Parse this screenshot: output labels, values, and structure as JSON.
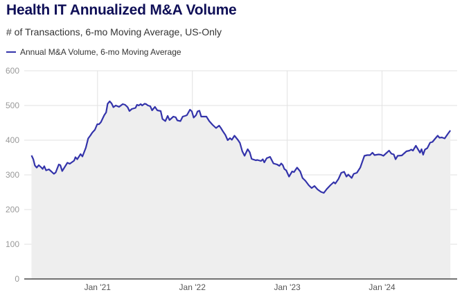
{
  "chart_data": {
    "type": "area",
    "title": "Health IT Annualized M&A Volume",
    "subtitle": "# of Transactions, 6-mo Moving Average, US-Only",
    "xlabel": "",
    "ylabel": "",
    "ylim": [
      0,
      600
    ],
    "xlim": [
      "2020-03-25",
      "2024-10-16"
    ],
    "yticks": [
      0,
      100,
      200,
      300,
      400,
      500,
      600
    ],
    "xticks": [
      {
        "date": "2021-01-01",
        "label": "Jan '21"
      },
      {
        "date": "2022-01-01",
        "label": "Jan '22"
      },
      {
        "date": "2023-01-01",
        "label": "Jan '23"
      },
      {
        "date": "2024-01-01",
        "label": "Jan '24"
      }
    ],
    "grid": true,
    "legend_position": "top-left",
    "colors": {
      "line": "#3333aa",
      "fill": "#eeeeee",
      "grid": "#e2e2e2",
      "title": "#0f0f57"
    },
    "series": [
      {
        "name": "Annual M&A Volume, 6-mo Moving Average",
        "x": [
          "2020-04-22",
          "2020-04-29",
          "2020-05-05",
          "2020-05-12",
          "2020-05-20",
          "2020-05-30",
          "2020-06-04",
          "2020-06-10",
          "2020-06-17",
          "2020-06-28",
          "2020-07-07",
          "2020-07-17",
          "2020-07-24",
          "2020-08-05",
          "2020-08-11",
          "2020-08-18",
          "2020-09-07",
          "2020-09-16",
          "2020-10-03",
          "2020-10-08",
          "2020-10-15",
          "2020-10-28",
          "2020-11-04",
          "2020-11-17",
          "2020-11-26",
          "2020-12-04",
          "2020-12-12",
          "2020-12-22",
          "2020-12-31",
          "2021-01-07",
          "2021-01-14",
          "2021-01-27",
          "2021-02-03",
          "2021-02-09",
          "2021-02-17",
          "2021-02-24",
          "2021-03-03",
          "2021-03-12",
          "2021-03-25",
          "2021-04-08",
          "2021-04-17",
          "2021-04-27",
          "2021-05-04",
          "2021-05-13",
          "2021-05-27",
          "2021-06-02",
          "2021-06-09",
          "2021-06-16",
          "2021-06-22",
          "2021-07-01",
          "2021-07-07",
          "2021-07-14",
          "2021-07-23",
          "2021-07-30",
          "2021-08-10",
          "2021-08-19",
          "2021-09-01",
          "2021-09-08",
          "2021-09-19",
          "2021-09-28",
          "2021-10-05",
          "2021-10-20",
          "2021-10-29",
          "2021-11-04",
          "2021-11-16",
          "2021-11-25",
          "2021-12-04",
          "2021-12-11",
          "2021-12-23",
          "2021-12-30",
          "2022-01-06",
          "2022-01-15",
          "2022-01-21",
          "2022-01-28",
          "2022-02-04",
          "2022-02-24",
          "2022-03-07",
          "2022-03-20",
          "2022-04-02",
          "2022-04-14",
          "2022-04-20",
          "2022-04-29",
          "2022-05-08",
          "2022-05-17",
          "2022-05-26",
          "2022-06-02",
          "2022-06-12",
          "2022-06-25",
          "2022-07-03",
          "2022-07-12",
          "2022-07-21",
          "2022-08-02",
          "2022-08-10",
          "2022-08-17",
          "2022-09-02",
          "2022-09-08",
          "2022-09-22",
          "2022-09-29",
          "2022-10-05",
          "2022-10-14",
          "2022-10-27",
          "2022-11-09",
          "2022-11-23",
          "2022-12-02",
          "2022-12-09",
          "2022-12-15",
          "2022-12-21",
          "2022-12-28",
          "2023-01-08",
          "2023-01-20",
          "2023-01-27",
          "2023-02-08",
          "2023-02-20",
          "2023-03-01",
          "2023-03-12",
          "2023-03-25",
          "2023-04-05",
          "2023-04-16",
          "2023-04-28",
          "2023-05-11",
          "2023-05-22",
          "2023-06-02",
          "2023-06-16",
          "2023-06-29",
          "2023-07-05",
          "2023-07-17",
          "2023-07-28",
          "2023-08-08",
          "2023-08-17",
          "2023-08-24",
          "2023-09-06",
          "2023-09-14",
          "2023-09-26",
          "2023-10-09",
          "2023-10-25",
          "2023-11-05",
          "2023-11-16",
          "2023-11-25",
          "2023-12-03",
          "2023-12-19",
          "2023-12-28",
          "2024-01-06",
          "2024-01-15",
          "2024-01-28",
          "2024-02-06",
          "2024-02-15",
          "2024-02-22",
          "2024-03-01",
          "2024-03-17",
          "2024-04-04",
          "2024-04-16",
          "2024-04-22",
          "2024-04-29",
          "2024-05-10",
          "2024-05-19",
          "2024-05-26",
          "2024-06-01",
          "2024-06-07",
          "2024-06-14",
          "2024-06-23",
          "2024-07-04",
          "2024-07-13",
          "2024-07-24",
          "2024-08-02",
          "2024-08-09",
          "2024-08-18",
          "2024-08-29",
          "2024-09-10",
          "2024-09-20"
        ],
        "values": [
          356,
          345,
          327,
          321,
          328,
          321,
          317,
          325,
          313,
          316,
          310,
          303,
          307,
          330,
          328,
          311,
          335,
          332,
          341,
          351,
          345,
          360,
          353,
          378,
          405,
          413,
          422,
          430,
          446,
          446,
          452,
          472,
          480,
          505,
          512,
          506,
          495,
          500,
          496,
          504,
          502,
          495,
          484,
          490,
          493,
          502,
          500,
          504,
          500,
          505,
          504,
          500,
          498,
          486,
          496,
          486,
          484,
          461,
          455,
          470,
          458,
          468,
          466,
          457,
          455,
          468,
          470,
          472,
          488,
          483,
          465,
          472,
          483,
          485,
          468,
          468,
          455,
          444,
          435,
          442,
          436,
          425,
          415,
          400,
          406,
          401,
          413,
          401,
          392,
          368,
          355,
          374,
          365,
          346,
          342,
          343,
          340,
          345,
          336,
          348,
          352,
          333,
          330,
          326,
          333,
          328,
          317,
          313,
          295,
          310,
          308,
          321,
          310,
          291,
          283,
          270,
          262,
          268,
          258,
          251,
          248,
          259,
          270,
          279,
          275,
          288,
          306,
          309,
          295,
          301,
          291,
          303,
          306,
          321,
          355,
          357,
          357,
          364,
          357,
          359,
          358,
          355,
          361,
          370,
          361,
          359,
          345,
          355,
          356,
          368,
          370,
          373,
          370,
          384,
          373,
          364,
          374,
          358,
          373,
          377,
          393,
          395,
          405,
          413,
          407,
          408,
          405,
          418,
          428
        ]
      }
    ]
  }
}
